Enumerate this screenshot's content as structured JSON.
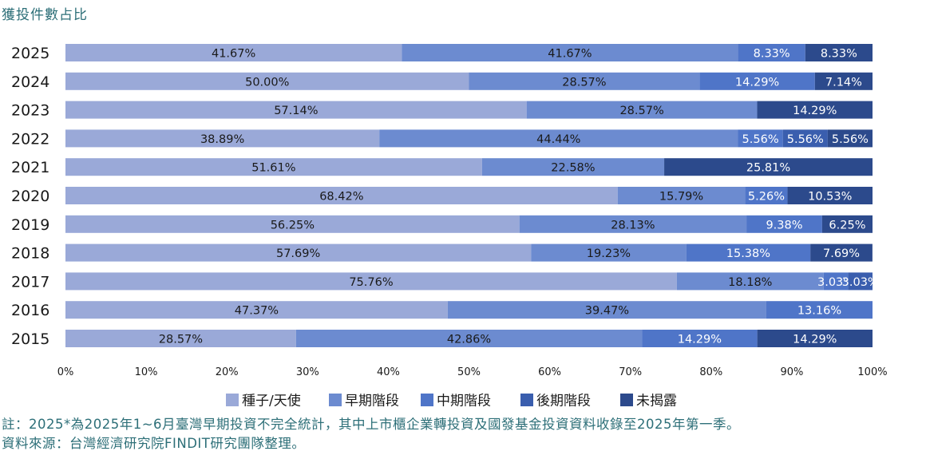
{
  "chart_data": {
    "type": "bar",
    "orientation": "horizontal",
    "stacked": true,
    "title": "獲投件數占比",
    "categories": [
      "2025",
      "2024",
      "2023",
      "2022",
      "2021",
      "2020",
      "2019",
      "2018",
      "2017",
      "2016",
      "2015"
    ],
    "series": [
      {
        "name": "種子/天使",
        "color": "#9aa9d8",
        "label_color": "#1a1a1a",
        "values": [
          41.67,
          50.0,
          57.14,
          38.89,
          51.61,
          68.42,
          56.25,
          57.69,
          75.76,
          47.37,
          28.57
        ],
        "labels": [
          "41.67%",
          "50.00%",
          "57.14%",
          "38.89%",
          "51.61%",
          "68.42%",
          "56.25%",
          "57.69%",
          "75.76%",
          "47.37%",
          "28.57%"
        ]
      },
      {
        "name": "早期階段",
        "color": "#6c8bd0",
        "label_color": "#1a1a1a",
        "values": [
          41.67,
          28.57,
          28.57,
          44.44,
          22.58,
          15.79,
          28.13,
          19.23,
          18.18,
          39.47,
          42.86
        ],
        "labels": [
          "41.67%",
          "28.57%",
          "28.57%",
          "44.44%",
          "22.58%",
          "15.79%",
          "28.13%",
          "19.23%",
          "18.18%",
          "39.47%",
          "42.86%"
        ]
      },
      {
        "name": "中期階段",
        "color": "#4f75c8",
        "label_color": "#ffffff",
        "values": [
          8.33,
          14.29,
          0,
          5.56,
          0,
          5.26,
          9.38,
          15.38,
          3.03,
          13.16,
          14.29
        ],
        "labels": [
          "8.33%",
          "14.29%",
          "",
          "5.56%",
          "",
          "5.26%",
          "9.38%",
          "15.38%",
          "3.03%",
          "13.16%",
          "14.29%"
        ]
      },
      {
        "name": "後期階段",
        "color": "#3a5eae",
        "label_color": "#ffffff",
        "values": [
          0,
          0,
          0,
          5.56,
          0,
          0,
          0,
          0,
          3.03,
          0,
          0
        ],
        "labels": [
          "",
          "",
          "",
          "5.56%",
          "",
          "",
          "",
          "",
          "3.03%",
          "",
          ""
        ]
      },
      {
        "name": "未揭露",
        "color": "#2c4a8c",
        "label_color": "#ffffff",
        "values": [
          8.33,
          7.14,
          14.29,
          5.56,
          25.81,
          10.53,
          6.25,
          7.69,
          0,
          0,
          14.29
        ],
        "labels": [
          "8.33%",
          "7.14%",
          "14.29%",
          "5.56%",
          "25.81%",
          "10.53%",
          "6.25%",
          "7.69%",
          "",
          "",
          "14.29%"
        ]
      }
    ],
    "x_axis": {
      "min": 0,
      "max": 100,
      "ticks": [
        "0%",
        "10%",
        "20%",
        "30%",
        "40%",
        "50%",
        "60%",
        "70%",
        "80%",
        "90%",
        "100%"
      ]
    },
    "legend_position": "bottom"
  },
  "notes": {
    "note": "註：2025*為2025年1~6月臺灣早期投資不完全統計，其中上市櫃企業轉投資及國發基金投資資料收錄至2025年第一季。",
    "source": "資料來源：台灣經濟研究院FINDIT研究團隊整理。"
  }
}
